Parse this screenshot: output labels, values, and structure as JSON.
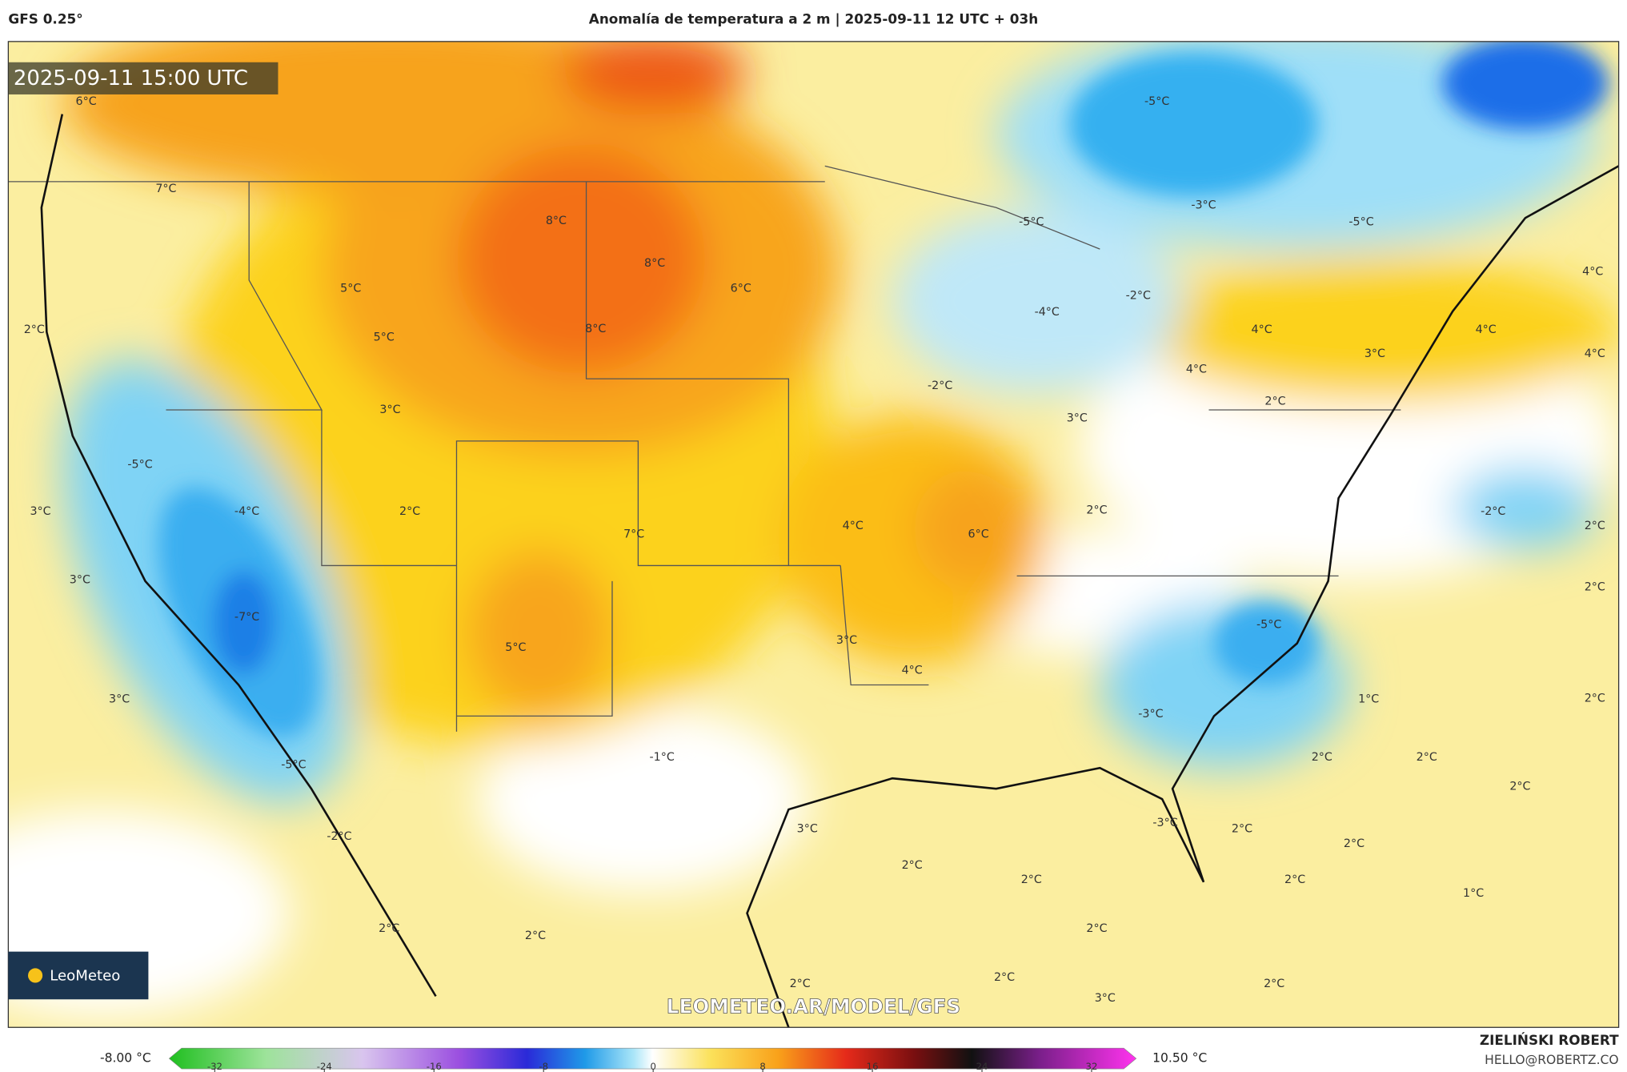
{
  "header": {
    "model": "GFS 0.25°",
    "title": "Anomalía de temperatura a 2 m | 2025-09-11 12 UTC + 03h"
  },
  "map": {
    "timestamp": "2025-09-11 15:00 UTC",
    "watermark": "LEOMETEO.AR/MODEL/GFS",
    "logo": "LeoMeteo",
    "labels": [
      "6°C",
      "7°C",
      "5°C",
      "5°C",
      "3°C",
      "8°C",
      "8°C",
      "6°C",
      "8°C",
      "2°C",
      "-5°C",
      "3°C",
      "-4°C",
      "2°C",
      "3°C",
      "-7°C",
      "7°C",
      "4°C",
      "6°C",
      "5°C",
      "3°C",
      "4°C",
      "3°C",
      "-5°C",
      "-1°C",
      "-2°C",
      "3°C",
      "2°C",
      "2°C",
      "2°C",
      "2°C",
      "2°C",
      "2°C",
      "2°C",
      "-3°C",
      "-3°C",
      "-5°C",
      "2°C",
      "2°C",
      "2°C",
      "3°C",
      "2°C",
      "2°C",
      "2°C",
      "2°C",
      "1°C",
      "1°C",
      "2°C",
      "2°C",
      "2°C",
      "-2°C",
      "2°C",
      "3°C",
      "2°C",
      "4°C",
      "4°C",
      "3°C",
      "4°C",
      "4°C",
      "4°C",
      "-2°C",
      "-4°C",
      "-2°C",
      "-5°C",
      "-3°C",
      "-5°C",
      "-5°C"
    ]
  },
  "colorbar": {
    "min_label": "-8.00 °C",
    "max_label": "10.50 °C",
    "ticks": [
      -32,
      -24,
      -16,
      -8,
      0,
      8,
      16,
      24,
      32
    ]
  },
  "credits": {
    "author": "ZIELIŃSKI ROBERT",
    "contact": "HELLO@ROBERTZ.CO"
  }
}
